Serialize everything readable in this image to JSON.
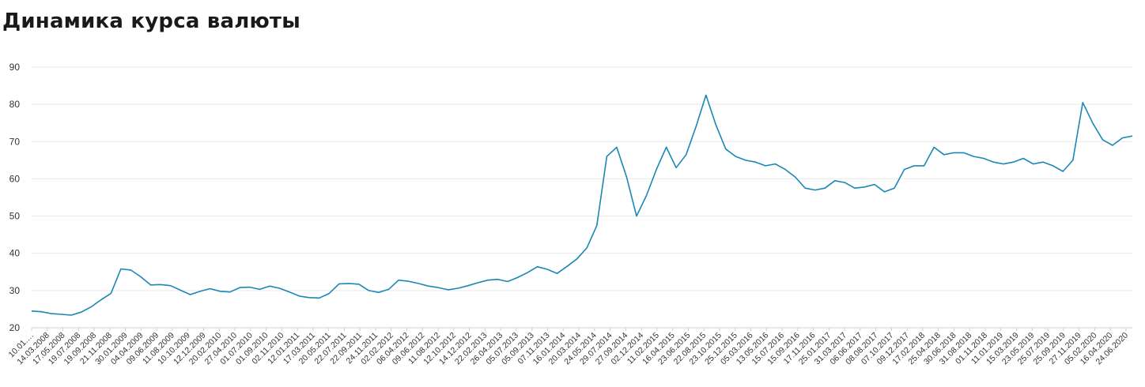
{
  "title": "Динамика курса валюты",
  "colors": {
    "line": "#1a87b5",
    "grid": "#e9e9e9",
    "text": "#333333"
  },
  "chart_data": {
    "type": "line",
    "title": "Динамика курса валюты",
    "xlabel": "",
    "ylabel": "",
    "ylim": [
      20,
      90
    ],
    "yticks": [
      20,
      30,
      40,
      50,
      60,
      70,
      80,
      90
    ],
    "grid": true,
    "x_tick_labels": [
      "10.01.…",
      "14.03.2008",
      "17.05.2008",
      "19.07.2008",
      "19.09.2008",
      "21.11.2008",
      "30.01.2009",
      "04.04.2009",
      "09.06.2009",
      "11.08.2009",
      "10.10.2009",
      "12.12.2009",
      "20.02.2010",
      "27.04.2010",
      "01.07.2010",
      "01.09.2010",
      "02.11.2010",
      "12.01.2011",
      "17.03.2011",
      "20.05.2011",
      "22.07.2011",
      "22.09.2011",
      "24.11.2011",
      "02.02.2012",
      "06.04.2012",
      "09.06.2012",
      "11.08.2012",
      "12.10.2012",
      "14.12.2012",
      "22.02.2013",
      "26.04.2013",
      "05.07.2013",
      "05.09.2013",
      "07.11.2013",
      "16.01.2014",
      "20.03.2014",
      "24.05.2014",
      "29.07.2014",
      "27.09.2014",
      "02.12.2014",
      "11.02.2015",
      "16.04.2015",
      "23.06.2015",
      "22.08.2015",
      "23.10.2015",
      "25.12.2015",
      "05.03.2016",
      "13.05.2016",
      "15.07.2016",
      "15.09.2016",
      "17.11.2016",
      "25.01.2017",
      "31.03.2017",
      "06.06.2017",
      "08.08.2017",
      "07.10.2017",
      "09.12.2017",
      "17.02.2018",
      "25.04.2018",
      "30.06.2018",
      "31.08.2018",
      "01.11.2018",
      "11.01.2019",
      "15.03.2019",
      "23.05.2019",
      "25.07.2019",
      "25.09.2019",
      "27.11.2019",
      "05.02.2020",
      "16.04.2020",
      "24.06.2020"
    ],
    "series": [
      {
        "values": [
          24.5,
          24.3,
          23.8,
          23.6,
          23.4,
          24.2,
          25.6,
          27.5,
          29.2,
          35.8,
          35.5,
          33.7,
          31.5,
          31.6,
          31.3,
          30.1,
          28.9,
          29.8,
          30.5,
          29.8,
          29.6,
          30.8,
          30.9,
          30.3,
          31.2,
          30.6,
          29.6,
          28.5,
          28.1,
          28.0,
          29.2,
          31.8,
          31.9,
          31.7,
          30.0,
          29.5,
          30.3,
          32.8,
          32.5,
          31.9,
          31.2,
          30.8,
          30.2,
          30.6,
          31.3,
          32.1,
          32.8,
          33.0,
          32.4,
          33.5,
          34.8,
          36.4,
          35.7,
          34.6,
          36.5,
          38.5,
          41.5,
          47.5,
          66.0,
          68.5,
          60.5,
          50.0,
          55.5,
          62.5,
          68.5,
          63.0,
          66.5,
          74.0,
          82.5,
          74.5,
          68.0,
          66.0,
          65.0,
          64.5,
          63.5,
          64.0,
          62.5,
          60.5,
          57.5,
          57.0,
          57.5,
          59.5,
          59.0,
          57.5,
          57.8,
          58.5,
          56.5,
          57.5,
          62.5,
          63.5,
          63.5,
          68.5,
          66.5,
          67.0,
          67.0,
          66.0,
          65.5,
          64.5,
          64.0,
          64.5,
          65.5,
          64.0,
          64.5,
          63.5,
          62.0,
          65.0,
          80.5,
          75.0,
          70.5,
          69.0,
          71.0,
          71.5
        ]
      }
    ]
  }
}
